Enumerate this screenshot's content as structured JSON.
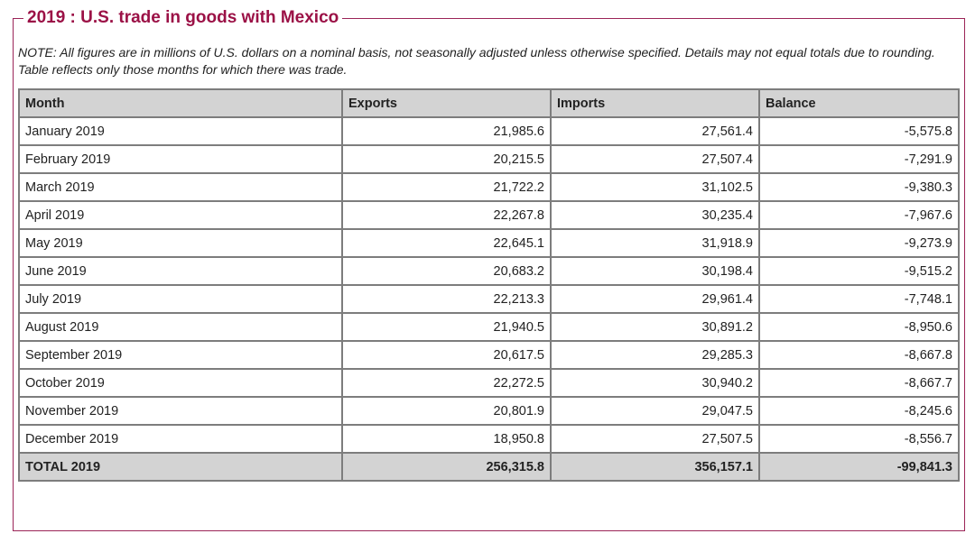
{
  "title": "2019 : U.S. trade in goods with Mexico",
  "note": "NOTE: All figures are in millions of U.S. dollars on a nominal basis, not seasonally adjusted unless otherwise specified. Details may not equal totals due to rounding. Table reflects only those months for which there was trade.",
  "table": {
    "headers": [
      "Month",
      "Exports",
      "Imports",
      "Balance"
    ],
    "rows": [
      {
        "month": "January 2019",
        "exports": "21,985.6",
        "imports": "27,561.4",
        "balance": "-5,575.8"
      },
      {
        "month": "February 2019",
        "exports": "20,215.5",
        "imports": "27,507.4",
        "balance": "-7,291.9"
      },
      {
        "month": "March 2019",
        "exports": "21,722.2",
        "imports": "31,102.5",
        "balance": "-9,380.3"
      },
      {
        "month": "April 2019",
        "exports": "22,267.8",
        "imports": "30,235.4",
        "balance": "-7,967.6"
      },
      {
        "month": "May 2019",
        "exports": "22,645.1",
        "imports": "31,918.9",
        "balance": "-9,273.9"
      },
      {
        "month": "June 2019",
        "exports": "20,683.2",
        "imports": "30,198.4",
        "balance": "-9,515.2"
      },
      {
        "month": "July 2019",
        "exports": "22,213.3",
        "imports": "29,961.4",
        "balance": "-7,748.1"
      },
      {
        "month": "August 2019",
        "exports": "21,940.5",
        "imports": "30,891.2",
        "balance": "-8,950.6"
      },
      {
        "month": "September 2019",
        "exports": "20,617.5",
        "imports": "29,285.3",
        "balance": "-8,667.8"
      },
      {
        "month": "October 2019",
        "exports": "22,272.5",
        "imports": "30,940.2",
        "balance": "-8,667.7"
      },
      {
        "month": "November 2019",
        "exports": "20,801.9",
        "imports": "29,047.5",
        "balance": "-8,245.6"
      },
      {
        "month": "December 2019",
        "exports": "18,950.8",
        "imports": "27,507.5",
        "balance": "-8,556.7"
      }
    ],
    "total": {
      "month": "TOTAL 2019",
      "exports": "256,315.8",
      "imports": "356,157.1",
      "balance": "-99,841.3"
    }
  },
  "colors": {
    "title": "#9b1146",
    "frame_border": "#9b2457",
    "header_bg": "#d3d3d3",
    "grid": "#7d7d7d"
  }
}
